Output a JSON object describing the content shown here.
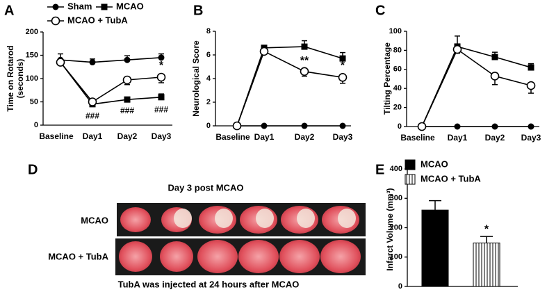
{
  "chart_data": [
    {
      "type": "line",
      "panel": "A",
      "ylabel": [
        "Time on Rotarod",
        "(seconds)"
      ],
      "categories": [
        "Baseline",
        "Day1",
        "Day2",
        "Day3"
      ],
      "ylim": [
        0,
        200
      ],
      "yticks": [
        0,
        50,
        100,
        150,
        200
      ],
      "series": [
        {
          "name": "Sham",
          "marker": "circle",
          "color": "#000000",
          "values": [
            140,
            135,
            140,
            145
          ],
          "errors": [
            13,
            7,
            9,
            8
          ]
        },
        {
          "name": "MCAO",
          "marker": "square",
          "color": "#000000",
          "values": [
            135,
            45,
            55,
            60
          ],
          "errors": [
            5,
            5,
            4,
            7
          ]
        },
        {
          "name": "MCAO + TubA",
          "marker": "open-circle",
          "color": "#000000",
          "values": [
            135,
            50,
            97,
            103
          ],
          "errors": [
            5,
            5,
            10,
            12
          ]
        }
      ],
      "upper_annotations": [
        null,
        null,
        null,
        "*"
      ],
      "lower_annotations": [
        null,
        "###",
        "###",
        "###"
      ]
    },
    {
      "type": "line",
      "panel": "B",
      "ylabel": [
        "Neurological Score"
      ],
      "categories": [
        "Baseline",
        "Day1",
        "Day2",
        "Day3"
      ],
      "ylim": [
        0,
        8
      ],
      "yticks": [
        0,
        2,
        4,
        6,
        8
      ],
      "series": [
        {
          "marker": "circle",
          "color": "#000000",
          "values": [
            0,
            0,
            0,
            0
          ]
        },
        {
          "marker": "square",
          "color": "#000000",
          "values": [
            0,
            6.6,
            6.7,
            5.7
          ],
          "errors": [
            0,
            0.2,
            0.5,
            0.5
          ]
        },
        {
          "marker": "open-circle",
          "color": "#000000",
          "values": [
            0,
            6.3,
            4.6,
            4.1
          ],
          "errors": [
            0,
            0.2,
            0.4,
            0.5
          ]
        }
      ],
      "upper_annotations": [
        null,
        null,
        "**",
        "*"
      ]
    },
    {
      "type": "line",
      "panel": "C",
      "ylabel": [
        "Tilting Percentage"
      ],
      "categories": [
        "Baseline",
        "Day1",
        "Day2",
        "Day3"
      ],
      "ylim": [
        0,
        100
      ],
      "yticks": [
        0,
        20,
        40,
        60,
        80,
        100
      ],
      "series": [
        {
          "marker": "circle",
          "color": "#000000",
          "values": [
            0,
            0,
            0,
            0
          ]
        },
        {
          "marker": "square",
          "color": "#000000",
          "values": [
            0,
            84,
            73,
            62
          ],
          "errors": [
            0,
            11,
            5,
            4
          ]
        },
        {
          "marker": "open-circle",
          "color": "#000000",
          "values": [
            0,
            81,
            53,
            43
          ],
          "errors": [
            0,
            4,
            9,
            8
          ]
        }
      ]
    },
    {
      "type": "bar",
      "panel": "E",
      "ylabel": [
        "Infarct Volume (mm³)"
      ],
      "categories": [
        null
      ],
      "ylim": [
        0,
        400
      ],
      "yticks": [
        0,
        100,
        200,
        300,
        400
      ],
      "series": [
        {
          "name": "MCAO",
          "color": "#000000",
          "values": [
            260
          ],
          "errors": [
            32
          ]
        },
        {
          "name": "MCAO + TubA",
          "color": "#000000",
          "pattern": "stripes",
          "values": [
            148
          ],
          "errors": [
            22
          ],
          "annotation": "*"
        }
      ]
    }
  ],
  "image_panel": {
    "panel": "D",
    "title": "Day 3 post MCAO",
    "rows": [
      "MCAO",
      "MCAO + TubA"
    ],
    "caption": "TubA was injected at 24 hours after MCAO"
  }
}
